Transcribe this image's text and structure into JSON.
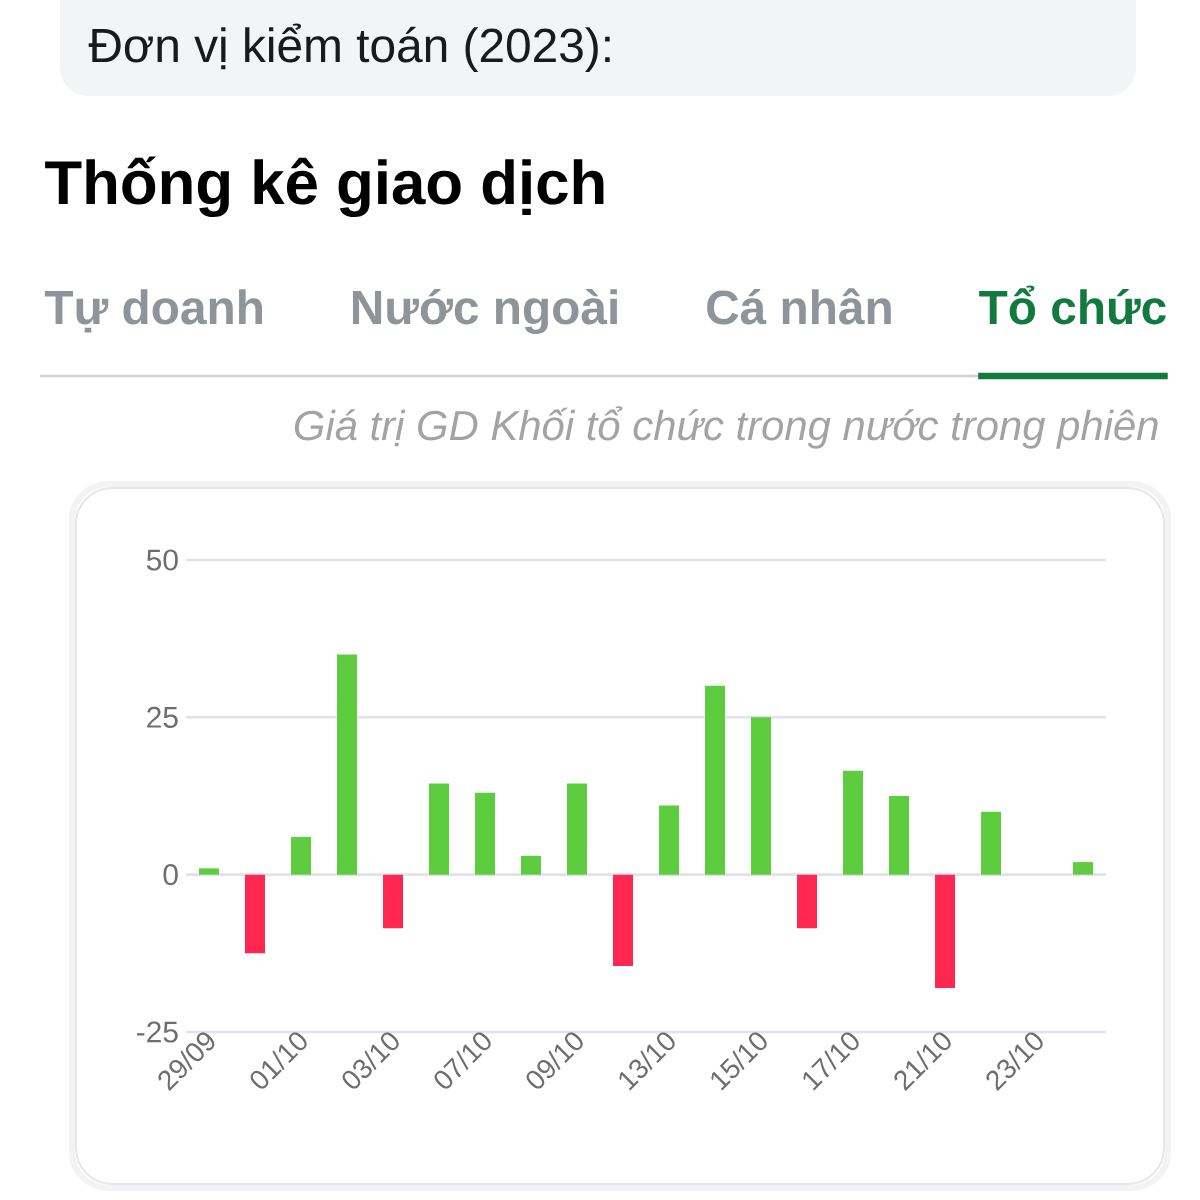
{
  "chart_data": {
    "type": "bar",
    "title": "Thống kê giao dịch",
    "subtitle": "Giá trị GD Khối tổ chức trong nước trong phiên",
    "annotations": [
      "Đơn vị kiểm toán (2023):",
      "Tự doanh",
      "Nước ngoài",
      "Cá nhân",
      "Tổ chức"
    ],
    "categories": [
      "29/09",
      null,
      "01/10",
      null,
      "03/10",
      null,
      "07/10",
      null,
      "09/10",
      null,
      "13/10",
      null,
      "15/10",
      null,
      "17/10",
      null,
      "21/10",
      null,
      "23/10",
      null
    ],
    "values": [
      1,
      -12.5,
      6,
      35,
      -8.5,
      14.5,
      13,
      3,
      14.5,
      -14.5,
      11,
      30,
      25,
      -8.5,
      16.5,
      12.5,
      -18,
      10,
      null,
      2
    ],
    "colors": [
      "#5dcc3f",
      "#fe2752",
      "#5dcc3f",
      "#5dcc3f",
      "#fe2752",
      "#5dcc3f",
      "#5dcc3f",
      "#5dcc3f",
      "#5dcc3f",
      "#fe2752",
      "#5dcc3f",
      "#5dcc3f",
      "#5dcc3f",
      "#fe2752",
      "#5dcc3f",
      "#5dcc3f",
      "#fe2752",
      "#5dcc3f",
      null,
      "#5dcc3f"
    ],
    "ylim": [
      -25,
      50
    ],
    "yticks": [
      -25,
      0,
      25,
      50
    ],
    "grid": "y"
  }
}
